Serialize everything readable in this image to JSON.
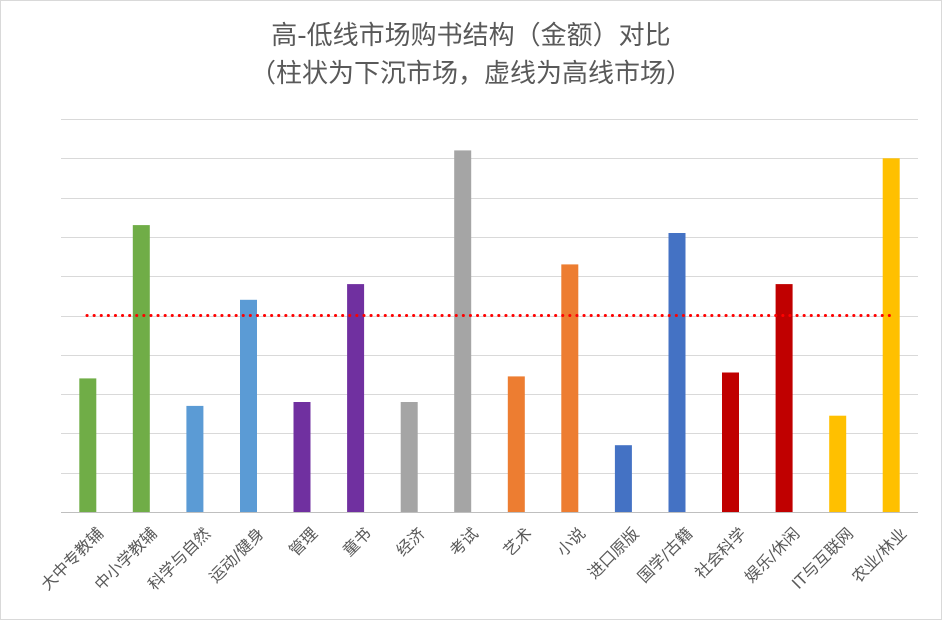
{
  "chart_data": {
    "type": "bar",
    "title": "高-低线市场购书结构（金额）对比",
    "subtitle": "（柱状为下沉市场，虚线为高线市场）",
    "categories": [
      "大中专教辅",
      "中小学教辅",
      "科学与自然",
      "运动/健身",
      "管理",
      "童书",
      "经济",
      "考试",
      "艺术",
      "小说",
      "进口原版",
      "国学/古籍",
      "社会科学",
      "娱乐/休闲",
      "IT与互联网",
      "农业/林业"
    ],
    "values": [
      0.34,
      0.73,
      0.27,
      0.54,
      0.28,
      0.58,
      0.28,
      0.92,
      0.345,
      0.63,
      0.17,
      0.71,
      0.355,
      0.58,
      0.245,
      0.9
    ],
    "bar_colors": [
      "#70ad47",
      "#70ad47",
      "#5b9bd5",
      "#5b9bd5",
      "#7030a0",
      "#7030a0",
      "#a5a5a5",
      "#a5a5a5",
      "#ed7d31",
      "#ed7d31",
      "#4472c4",
      "#4472c4",
      "#c00000",
      "#c00000",
      "#ffc000",
      "#ffc000"
    ],
    "reference_line": {
      "value": 0.5,
      "color": "#ff0000",
      "style": "dotted"
    },
    "ylim": [
      0,
      1
    ],
    "gridline_count": 10,
    "grid": true,
    "legend": "none",
    "y_tick_labels": "none",
    "xlabel": "",
    "ylabel": ""
  }
}
